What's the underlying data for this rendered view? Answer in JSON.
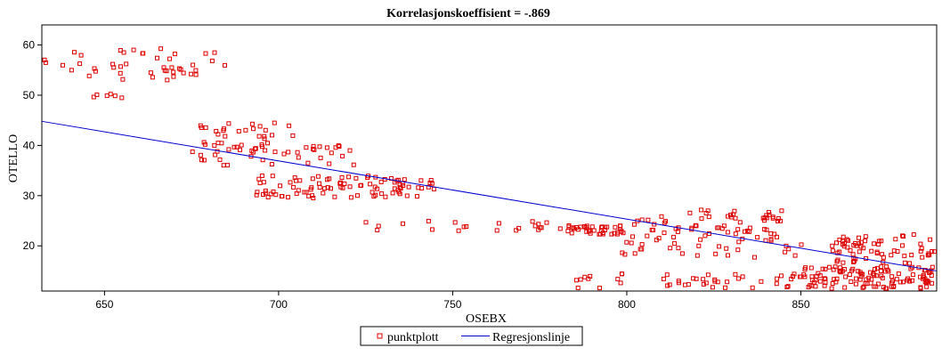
{
  "chart_data": {
    "type": "scatter",
    "title": "Korrelasjonskoeffisient =  -.869",
    "xlabel": "OSEBX",
    "ylabel": "OTELLO",
    "xlim": [
      632,
      889
    ],
    "ylim": [
      11,
      64
    ],
    "x_ticks": [
      650,
      700,
      750,
      800,
      850
    ],
    "y_ticks": [
      20,
      30,
      40,
      50,
      60
    ],
    "grid": false,
    "legend_position": "bottom-center",
    "legend": [
      "punktplott",
      "Regresjonslinje"
    ],
    "colors": {
      "points": "#dd0000",
      "line": "#0000cc"
    },
    "regression_line": {
      "x": [
        632,
        889
      ],
      "y": [
        44.8,
        15.0
      ]
    },
    "clusters": [
      {
        "x": [
          632,
          686
        ],
        "y": [
          53,
          59.3
        ],
        "n": 45
      },
      {
        "x": [
          645,
          655
        ],
        "y": [
          48.5,
          50.5
        ],
        "n": 6
      },
      {
        "x": [
          675,
          705
        ],
        "y": [
          36,
          44.5
        ],
        "n": 55
      },
      {
        "x": [
          705,
          722
        ],
        "y": [
          36,
          40
        ],
        "n": 18
      },
      {
        "x": [
          693,
          745
        ],
        "y": [
          29.5,
          34
        ],
        "n": 95
      },
      {
        "x": [
          722,
          745
        ],
        "y": [
          23,
          25
        ],
        "n": 6
      },
      {
        "x": [
          745,
          785
        ],
        "y": [
          23,
          25
        ],
        "n": 18
      },
      {
        "x": [
          783,
          800
        ],
        "y": [
          22.3,
          24
        ],
        "n": 35
      },
      {
        "x": [
          798,
          845
        ],
        "y": [
          21,
          27.2
        ],
        "n": 75
      },
      {
        "x": [
          798,
          855
        ],
        "y": [
          17.5,
          21
        ],
        "n": 22
      },
      {
        "x": [
          845,
          875
        ],
        "y": [
          18.5,
          21
        ],
        "n": 16
      },
      {
        "x": [
          860,
          889
        ],
        "y": [
          16.5,
          22.5
        ],
        "n": 55
      },
      {
        "x": [
          785,
          850
        ],
        "y": [
          11.5,
          14.5
        ],
        "n": 45
      },
      {
        "x": [
          850,
          889
        ],
        "y": [
          11.5,
          16
        ],
        "n": 120
      }
    ]
  }
}
